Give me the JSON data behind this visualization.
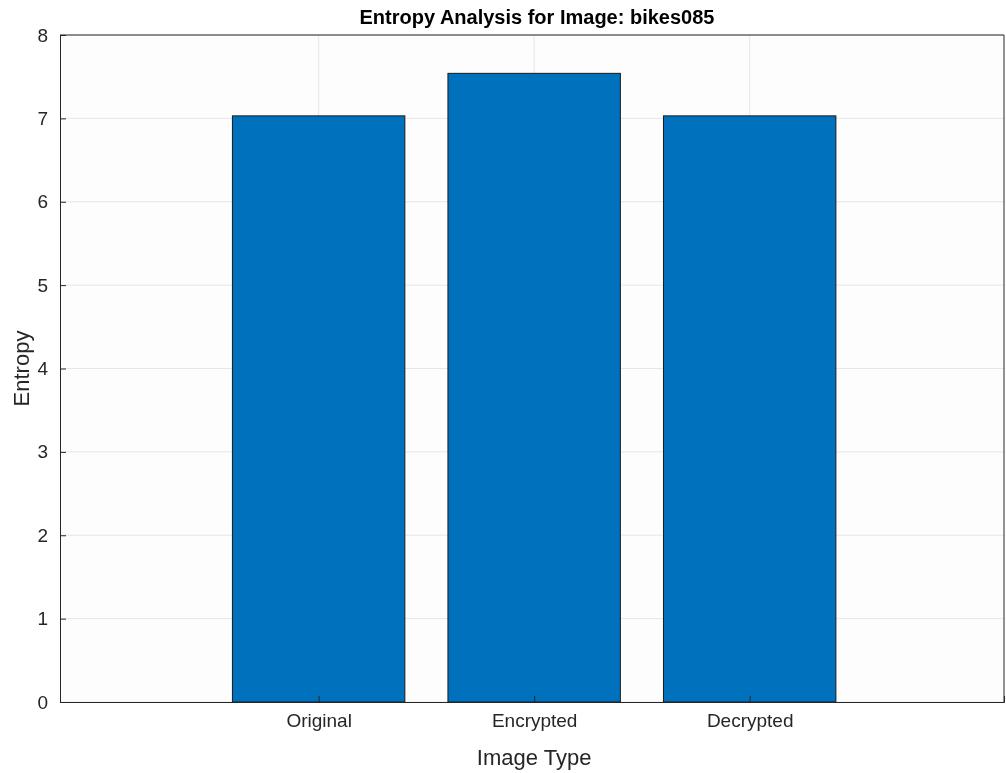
{
  "chart_data": {
    "type": "bar",
    "title": "Entropy Analysis for Image: bikes085",
    "xlabel": "Image Type",
    "ylabel": "Entropy",
    "categories": [
      "Original",
      "Encrypted",
      "Decrypted"
    ],
    "series": [
      {
        "color": "#0072bd",
        "values": [
          7.03,
          7.54,
          7.03
        ]
      }
    ],
    "ylim": [
      0,
      8
    ],
    "yticks": [
      0,
      1,
      2,
      3,
      4,
      5,
      6,
      7,
      8
    ],
    "grid": true
  }
}
